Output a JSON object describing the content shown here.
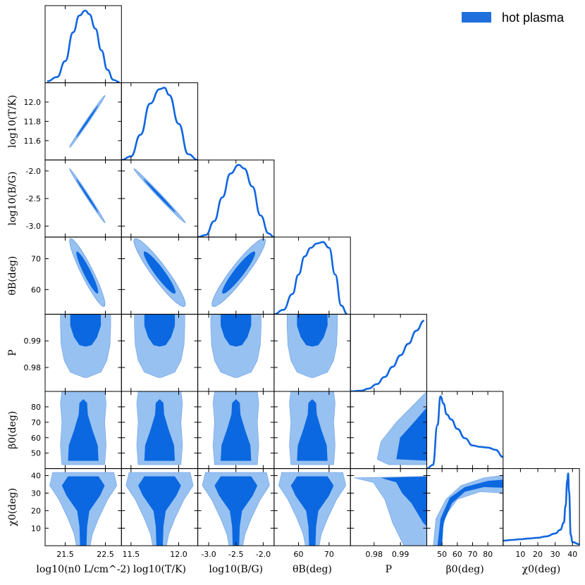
{
  "legend": {
    "label": "hot plasma",
    "color": "#1f6fdd"
  },
  "colors": {
    "outer": "#97c1f1",
    "inner": "#0b68e0",
    "line": "#1066e0",
    "outerEdge": "#6a9fe6"
  },
  "chart_data": {
    "type": "corner",
    "title": "",
    "params": [
      {
        "key": "logNL",
        "label": "log10(n0 L/cm^-2)",
        "range": [
          21.0,
          22.9
        ],
        "ticks": [
          21.5,
          22.5
        ],
        "tick_labels": [
          "21.5",
          "22.5"
        ],
        "mean": 22.05,
        "sigma": 0.18
      },
      {
        "key": "logT",
        "label": "log10(T/K)",
        "range": [
          11.4,
          12.2
        ],
        "ticks": [
          11.6,
          11.8,
          12.0
        ],
        "tick_labels": [
          "11.6",
          "11.8",
          "12.0"
        ],
        "xtick_labels": [
          "11.5",
          "12.0"
        ],
        "xticks": [
          11.5,
          12.0
        ],
        "mean": 11.8,
        "sigma": 0.11
      },
      {
        "key": "logB",
        "label": "log10(B/G)",
        "range": [
          -3.2,
          -1.8
        ],
        "ticks": [
          -3.0,
          -2.5,
          -2.0
        ],
        "tick_labels": [
          "-3.0",
          "-2.5",
          "-2.0"
        ],
        "mean": -2.45,
        "sigma": 0.2
      },
      {
        "key": "thetaB",
        "label": "θB(deg)",
        "range": [
          52,
          77
        ],
        "ticks": [
          60,
          70
        ],
        "tick_labels": [
          "60",
          "70"
        ],
        "mean": 65.5,
        "sigma": 4.5
      },
      {
        "key": "P",
        "label": "P",
        "range": [
          0.971,
          1.0
        ],
        "ticks": [
          0.98,
          0.99
        ],
        "tick_labels": [
          "0.98",
          "0.99"
        ],
        "mean": 1.0,
        "sigma": 0.01
      },
      {
        "key": "beta0",
        "label": "β0(deg)",
        "range": [
          40,
          90
        ],
        "ticks": [
          50,
          60,
          70,
          80
        ],
        "tick_labels": [
          "50",
          "60",
          "70",
          "80"
        ],
        "mean": 55,
        "sigma": 10
      },
      {
        "key": "chi0",
        "label": "χ0(deg)",
        "range": [
          0,
          44
        ],
        "ticks": [
          10,
          20,
          30,
          40
        ],
        "tick_labels": [
          "10",
          "20",
          "30",
          "40"
        ],
        "mean": 37,
        "sigma": 2
      }
    ],
    "diagonal_1d": {
      "logNL": {
        "x": [
          21.05,
          21.3,
          21.5,
          21.7,
          21.85,
          22.0,
          22.1,
          22.25,
          22.4,
          22.55,
          22.7,
          22.85
        ],
        "y": [
          0.02,
          0.08,
          0.3,
          0.7,
          0.93,
          1.0,
          0.95,
          0.75,
          0.45,
          0.18,
          0.04,
          0.01
        ]
      },
      "logT": {
        "x": [
          11.4,
          11.5,
          11.6,
          11.7,
          11.8,
          11.85,
          11.9,
          12.0,
          12.1,
          12.2
        ],
        "y": [
          0.0,
          0.05,
          0.35,
          0.78,
          0.98,
          1.0,
          0.9,
          0.5,
          0.08,
          0.0
        ]
      },
      "logB": {
        "x": [
          -3.2,
          -3.05,
          -2.9,
          -2.75,
          -2.6,
          -2.45,
          -2.35,
          -2.2,
          -2.05,
          -1.9,
          -1.8
        ],
        "y": [
          0.0,
          0.03,
          0.22,
          0.55,
          0.88,
          1.0,
          0.95,
          0.7,
          0.3,
          0.05,
          0.0
        ]
      },
      "thetaB": {
        "x": [
          52,
          55,
          58,
          60,
          62,
          64,
          66,
          68,
          70,
          72,
          74,
          76
        ],
        "y": [
          0.0,
          0.06,
          0.28,
          0.55,
          0.8,
          0.92,
          0.98,
          1.0,
          0.92,
          0.55,
          0.12,
          0.0
        ]
      },
      "P": {
        "x": [
          0.971,
          0.975,
          0.978,
          0.981,
          0.984,
          0.987,
          0.99,
          0.993,
          0.996,
          0.999
        ],
        "y": [
          0.0,
          0.01,
          0.04,
          0.1,
          0.2,
          0.34,
          0.5,
          0.66,
          0.84,
          0.98
        ]
      },
      "beta0": {
        "x": [
          40,
          44,
          47,
          49,
          51,
          53,
          56,
          60,
          65,
          70,
          75,
          80,
          85,
          90
        ],
        "y": [
          0.0,
          0.05,
          0.6,
          1.0,
          0.9,
          0.75,
          0.68,
          0.55,
          0.42,
          0.32,
          0.3,
          0.29,
          0.26,
          0.16
        ]
      },
      "chi0": {
        "x": [
          0,
          5,
          10,
          15,
          20,
          25,
          30,
          33,
          35,
          36,
          37,
          37.5,
          38,
          39,
          40,
          44
        ],
        "y": [
          0.07,
          0.08,
          0.09,
          0.1,
          0.11,
          0.13,
          0.17,
          0.22,
          0.32,
          0.55,
          0.9,
          1.0,
          0.75,
          0.15,
          0.05,
          0.02
        ]
      }
    }
  }
}
